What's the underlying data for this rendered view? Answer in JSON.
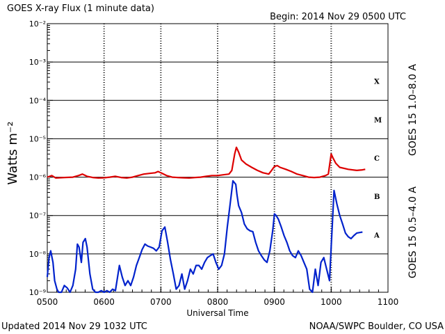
{
  "chart_data": {
    "type": "line",
    "title": "GOES X-ray Flux (1 minute data)",
    "begin_label": "Begin: 2014 Nov 29 0500 UTC",
    "xlabel": "Universal Time",
    "ylabel": "Watts m⁻²",
    "footer_left": "Updated 2014 Nov 29 1032 UTC",
    "footer_right": "NOAA/SWPC Boulder, CO USA",
    "y_scale": "log",
    "ylim": [
      1e-09,
      0.01
    ],
    "xlim": [
      5.0,
      11.0
    ],
    "x_ticks": [
      {
        "value": 5.0,
        "label": "0500"
      },
      {
        "value": 6.0,
        "label": "0600"
      },
      {
        "value": 7.0,
        "label": "0700"
      },
      {
        "value": 8.0,
        "label": "0800"
      },
      {
        "value": 9.0,
        "label": "0900"
      },
      {
        "value": 10.0,
        "label": "1000"
      },
      {
        "value": 11.0,
        "label": "1100"
      }
    ],
    "y_ticks": [
      {
        "exp": -9,
        "label": "10⁻⁹"
      },
      {
        "exp": -8,
        "label": "10⁻⁸"
      },
      {
        "exp": -7,
        "label": "10⁻⁷"
      },
      {
        "exp": -6,
        "label": "10⁻⁶"
      },
      {
        "exp": -5,
        "label": "10⁻⁵"
      },
      {
        "exp": -4,
        "label": "10⁻⁴"
      },
      {
        "exp": -3,
        "label": "10⁻³"
      },
      {
        "exp": -2,
        "label": "10⁻²"
      }
    ],
    "flare_classes": [
      {
        "label": "A",
        "exp": -8
      },
      {
        "label": "B",
        "exp": -7
      },
      {
        "label": "C",
        "exp": -6
      },
      {
        "label": "M",
        "exp": -5
      },
      {
        "label": "X",
        "exp": -4
      }
    ],
    "grid": true,
    "series": [
      {
        "name": "GOES 15 1.0–8.0 A",
        "color": "#dd0000",
        "x": [
          5.0,
          5.08,
          5.15,
          5.3,
          5.45,
          5.55,
          5.62,
          5.7,
          5.8,
          5.9,
          6.0,
          6.1,
          6.2,
          6.3,
          6.4,
          6.5,
          6.6,
          6.7,
          6.8,
          6.9,
          6.95,
          7.0,
          7.1,
          7.2,
          7.3,
          7.4,
          7.5,
          7.6,
          7.7,
          7.8,
          7.9,
          8.0,
          8.1,
          8.2,
          8.25,
          8.3,
          8.33,
          8.37,
          8.42,
          8.5,
          8.6,
          8.7,
          8.8,
          8.9,
          8.95,
          9.0,
          9.05,
          9.1,
          9.2,
          9.3,
          9.4,
          9.5,
          9.6,
          9.7,
          9.8,
          9.9,
          9.95,
          10.0,
          10.03,
          10.08,
          10.15,
          10.3,
          10.45,
          10.55,
          10.6
        ],
        "y": [
          1e-06,
          1.1e-06,
          9.5e-07,
          9.8e-07,
          1e-06,
          1.1e-06,
          1.2e-06,
          1.05e-06,
          9.8e-07,
          9.5e-07,
          9.6e-07,
          1e-06,
          1.05e-06,
          9.8e-07,
          9.5e-07,
          1e-06,
          1.1e-06,
          1.2e-06,
          1.25e-06,
          1.3e-06,
          1.4e-06,
          1.3e-06,
          1.1e-06,
          1e-06,
          9.8e-07,
          9.6e-07,
          9.5e-07,
          9.8e-07,
          1e-06,
          1.05e-06,
          1.1e-06,
          1.1e-06,
          1.15e-06,
          1.2e-06,
          1.5e-06,
          4e-06,
          6e-06,
          4.5e-06,
          2.8e-06,
          2.2e-06,
          1.8e-06,
          1.5e-06,
          1.3e-06,
          1.2e-06,
          1.5e-06,
          1.9e-06,
          2e-06,
          1.8e-06,
          1.6e-06,
          1.4e-06,
          1.2e-06,
          1.1e-06,
          1e-06,
          9.8e-07,
          1e-06,
          1.1e-06,
          1.2e-06,
          4e-06,
          3.2e-06,
          2.3e-06,
          1.8e-06,
          1.6e-06,
          1.5e-06,
          1.55e-06,
          1.6e-06
        ]
      },
      {
        "name": "GOES 15 0.5–4.0 A",
        "color": "#0022cc",
        "x": [
          5.0,
          5.03,
          5.06,
          5.1,
          5.13,
          5.17,
          5.2,
          5.25,
          5.3,
          5.35,
          5.4,
          5.45,
          5.5,
          5.53,
          5.56,
          5.6,
          5.63,
          5.67,
          5.7,
          5.75,
          5.8,
          5.85,
          5.9,
          5.95,
          6.0,
          6.05,
          6.1,
          6.15,
          6.2,
          6.27,
          6.32,
          6.37,
          6.42,
          6.47,
          6.52,
          6.57,
          6.62,
          6.67,
          6.72,
          6.77,
          6.82,
          6.87,
          6.92,
          6.97,
          7.02,
          7.07,
          7.12,
          7.17,
          7.22,
          7.27,
          7.32,
          7.37,
          7.42,
          7.47,
          7.52,
          7.57,
          7.62,
          7.67,
          7.72,
          7.77,
          7.82,
          7.87,
          7.92,
          7.97,
          8.02,
          8.07,
          8.12,
          8.17,
          8.22,
          8.27,
          8.32,
          8.34,
          8.37,
          8.42,
          8.47,
          8.52,
          8.57,
          8.62,
          8.67,
          8.72,
          8.77,
          8.82,
          8.87,
          8.92,
          8.97,
          9.0,
          9.03,
          9.07,
          9.12,
          9.17,
          9.22,
          9.27,
          9.32,
          9.37,
          9.42,
          9.47,
          9.52,
          9.57,
          9.62,
          9.67,
          9.72,
          9.77,
          9.82,
          9.87,
          9.92,
          9.97,
          10.0,
          10.02,
          10.05,
          10.1,
          10.15,
          10.2,
          10.25,
          10.3,
          10.35,
          10.4,
          10.45,
          10.5,
          10.55
        ],
        "y": [
          2.5e-09,
          8e-09,
          1.2e-08,
          6e-09,
          2e-09,
          1.2e-09,
          1e-09,
          1e-09,
          1.5e-09,
          1.3e-09,
          1e-09,
          1.5e-09,
          4e-09,
          1.8e-08,
          1.5e-08,
          6e-09,
          2e-08,
          2.5e-08,
          1.5e-08,
          3e-09,
          1.2e-09,
          1e-09,
          1e-09,
          1.1e-09,
          1e-09,
          1.1e-09,
          1e-09,
          1.2e-09,
          1.1e-09,
          5e-09,
          2.5e-09,
          1.5e-09,
          2e-09,
          1.5e-09,
          2.5e-09,
          5e-09,
          8e-09,
          1.3e-08,
          1.8e-08,
          1.6e-08,
          1.5e-08,
          1.4e-08,
          1.2e-08,
          1.5e-08,
          4e-08,
          5e-08,
          2e-08,
          7e-09,
          3e-09,
          1.2e-09,
          1.5e-09,
          3e-09,
          1.2e-09,
          2e-09,
          4e-09,
          3e-09,
          5e-09,
          5e-09,
          4e-09,
          6e-09,
          8e-09,
          9e-09,
          1e-08,
          6e-09,
          4e-09,
          5e-09,
          1e-08,
          5e-08,
          2e-07,
          8e-07,
          6.5e-07,
          3.5e-07,
          1.8e-07,
          1.2e-07,
          6e-08,
          4.5e-08,
          4e-08,
          3.8e-08,
          2e-08,
          1.2e-08,
          9e-09,
          7e-09,
          6e-09,
          1.2e-08,
          4e-08,
          1.1e-07,
          1e-07,
          8e-08,
          5e-08,
          3e-08,
          2e-08,
          1.2e-08,
          9e-09,
          8e-09,
          1.2e-08,
          9e-09,
          6e-09,
          4e-09,
          1.2e-09,
          1e-09,
          4e-09,
          1.5e-09,
          6e-09,
          8e-09,
          4e-09,
          2e-09,
          1.5e-08,
          6e-08,
          4.5e-07,
          2e-07,
          1e-07,
          6e-08,
          3.5e-08,
          2.8e-08,
          2.5e-08,
          3e-08,
          3.5e-08,
          3.6e-08,
          3.7e-08
        ]
      }
    ]
  }
}
